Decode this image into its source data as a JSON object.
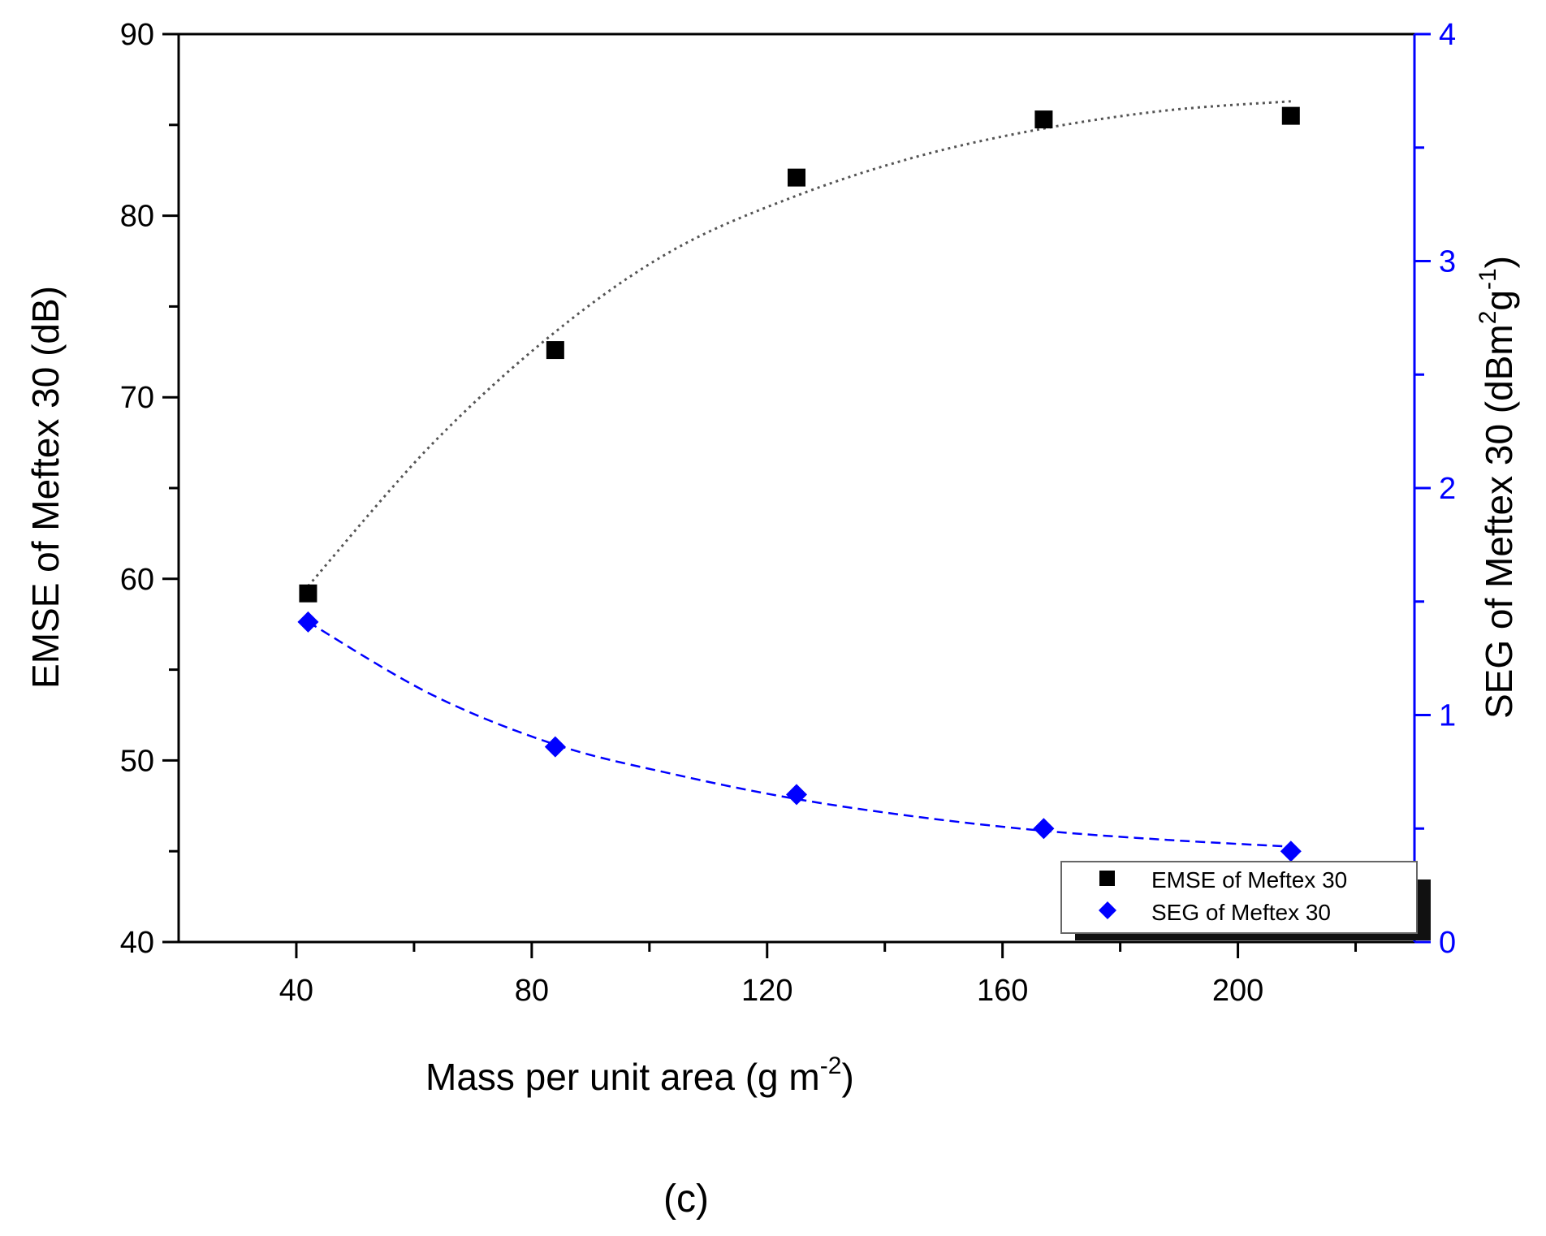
{
  "chart_data": {
    "type": "scatter",
    "title": "",
    "caption": "(c)",
    "xlabel": {
      "main": "Mass per unit area  (g m",
      "sup": "-2",
      "close": ")"
    },
    "ylabel_left": "EMSE of Meftex 30 (dB)",
    "ylabel_right": {
      "part1": "SEG of Meftex 30 (dBm",
      "sup1": "2",
      "part2": "g",
      "sup2": "-1",
      "part3": ")"
    },
    "xlim": [
      20,
      230
    ],
    "ylim_left": [
      40,
      90
    ],
    "ylim_right": [
      0,
      4
    ],
    "x_ticks": [
      40,
      80,
      120,
      160,
      200
    ],
    "x_tick_labels": [
      "40",
      "80",
      "120",
      "160",
      "200"
    ],
    "y_left_ticks": [
      40,
      50,
      60,
      70,
      80,
      90
    ],
    "y_left_tick_labels": [
      "40",
      "50",
      "60",
      "70",
      "80",
      "90"
    ],
    "y_right_ticks": [
      0,
      1,
      2,
      3,
      4
    ],
    "y_right_tick_labels": [
      "0",
      "1",
      "2",
      "3",
      "4"
    ],
    "series": [
      {
        "name": "EMSE of Meftex 30",
        "axis": "left",
        "marker": "square",
        "color": "#000000",
        "x": [
          42,
          84,
          125,
          167,
          209
        ],
        "y": [
          59.2,
          72.6,
          82.1,
          85.3,
          85.5
        ]
      },
      {
        "name": "SEG of Meftex 30",
        "axis": "right",
        "marker": "diamond",
        "color": "#0000ff",
        "x": [
          42,
          84,
          125,
          167,
          209
        ],
        "y": [
          1.41,
          0.86,
          0.65,
          0.5,
          0.4
        ]
      }
    ],
    "fits": [
      {
        "series": "EMSE of Meftex 30",
        "axis": "left",
        "style": "dotted",
        "color": "#555555",
        "x": [
          42,
          63,
          84,
          104,
          125,
          146,
          167,
          188,
          209
        ],
        "y": [
          59.6,
          67.4,
          73.6,
          78.1,
          81.1,
          83.3,
          84.8,
          85.8,
          86.3
        ]
      },
      {
        "series": "SEG of Meftex 30",
        "axis": "right",
        "style": "dashed",
        "color": "#0000ff",
        "x": [
          42,
          63,
          84,
          104,
          125,
          146,
          167,
          188,
          209
        ],
        "y": [
          1.41,
          1.09,
          0.87,
          0.74,
          0.63,
          0.55,
          0.49,
          0.45,
          0.42
        ]
      }
    ],
    "legend_position": "bottom-right",
    "grid": false
  }
}
